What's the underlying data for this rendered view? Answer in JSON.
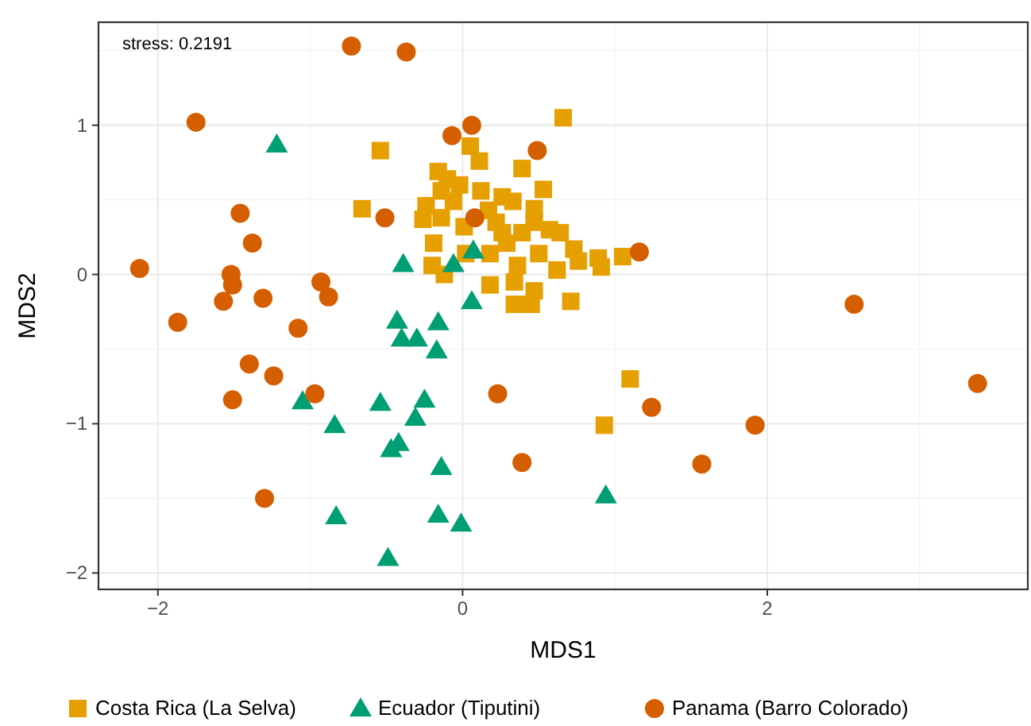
{
  "chart_data": {
    "type": "scatter",
    "xlabel": "MDS1",
    "ylabel": "MDS2",
    "xlim": [
      -2.39,
      3.71
    ],
    "ylim": [
      -2.11,
      1.69
    ],
    "xticks": [
      {
        "value": -2,
        "label": "−2"
      },
      0,
      2
    ],
    "yticks": [
      {
        "value": -2,
        "label": "−2"
      },
      {
        "value": -1,
        "label": "−1"
      },
      0,
      1
    ],
    "grid": true,
    "legend": "bottom",
    "annotations": [
      "stress: 0.2191"
    ],
    "series": [
      {
        "name": "Costa Rica (La Selva)",
        "color": "#e69f00",
        "marker": "square",
        "x": [
          0.66,
          -0.54,
          -0.66,
          1.1,
          0.93,
          0.05,
          0.11,
          0.39,
          -0.16,
          -0.1,
          -0.02,
          0.12,
          0.53,
          -0.14,
          0.26,
          0.33,
          -0.24,
          0.47,
          -0.26,
          -0.14,
          0.17,
          0.22,
          0.47,
          0.57,
          0.64,
          0.73,
          0.89,
          1.05,
          0.91,
          0.76,
          -0.19,
          -0.2,
          -0.12,
          0.02,
          0.18,
          0.29,
          0.39,
          0.36,
          0.5,
          0.62,
          0.18,
          0.34,
          0.47,
          0.34,
          0.45,
          0.71,
          null,
          -0.06,
          0.01,
          0.26
        ],
        "values": [
          1.05,
          0.83,
          0.44,
          -0.7,
          -1.01,
          0.86,
          0.76,
          0.71,
          0.69,
          0.64,
          0.6,
          0.56,
          0.57,
          0.56,
          0.52,
          0.49,
          0.46,
          0.44,
          0.37,
          0.38,
          0.43,
          0.35,
          0.35,
          0.3,
          0.28,
          0.17,
          0.11,
          0.12,
          0.05,
          0.09,
          0.21,
          0.06,
          0.0,
          0.14,
          0.14,
          0.21,
          0.28,
          0.06,
          0.14,
          0.03,
          -0.07,
          -0.05,
          -0.11,
          -0.2,
          -0.2,
          -0.18,
          null,
          0.49,
          0.32,
          0.28
        ]
      },
      {
        "name": "Ecuador (Tiputini)",
        "color": "#009e73",
        "marker": "triangle",
        "x": [
          -1.22,
          -0.39,
          -0.06,
          0.07,
          0.06,
          -0.43,
          -0.16,
          -0.4,
          -0.3,
          -0.17,
          -1.05,
          -0.54,
          -0.25,
          -0.31,
          -0.84,
          -0.42,
          -0.47,
          -0.14,
          0.94,
          -0.83,
          -0.16,
          -0.01,
          -0.49
        ],
        "values": [
          0.87,
          0.07,
          0.07,
          0.16,
          -0.18,
          -0.31,
          -0.32,
          -0.43,
          -0.43,
          -0.51,
          -0.85,
          -0.86,
          -0.84,
          -0.96,
          -1.01,
          -1.13,
          -1.17,
          -1.29,
          -1.48,
          -1.62,
          -1.61,
          -1.67,
          -1.9
        ]
      },
      {
        "name": "Panama (Barro Colorado)",
        "color": "#d55e00",
        "marker": "circle",
        "x": [
          -0.73,
          -0.37,
          -1.75,
          -0.07,
          0.06,
          0.49,
          -0.51,
          -1.46,
          -1.38,
          -2.12,
          -1.52,
          -1.51,
          -1.57,
          -1.31,
          -0.93,
          -0.88,
          -1.87,
          -1.08,
          -1.4,
          -1.24,
          -1.51,
          -0.97,
          0.23,
          0.39,
          -1.3,
          1.24,
          1.16,
          2.57,
          3.38,
          1.92,
          1.57,
          0.08
        ],
        "values": [
          1.53,
          1.49,
          1.02,
          0.93,
          1.0,
          0.83,
          0.38,
          0.41,
          0.21,
          0.04,
          0.0,
          -0.07,
          -0.18,
          -0.16,
          -0.05,
          -0.15,
          -0.32,
          -0.36,
          -0.6,
          -0.68,
          -0.84,
          -0.8,
          -0.8,
          -1.26,
          -1.5,
          -0.89,
          0.15,
          -0.2,
          -0.73,
          -1.01,
          -1.27,
          0.38
        ]
      }
    ]
  }
}
